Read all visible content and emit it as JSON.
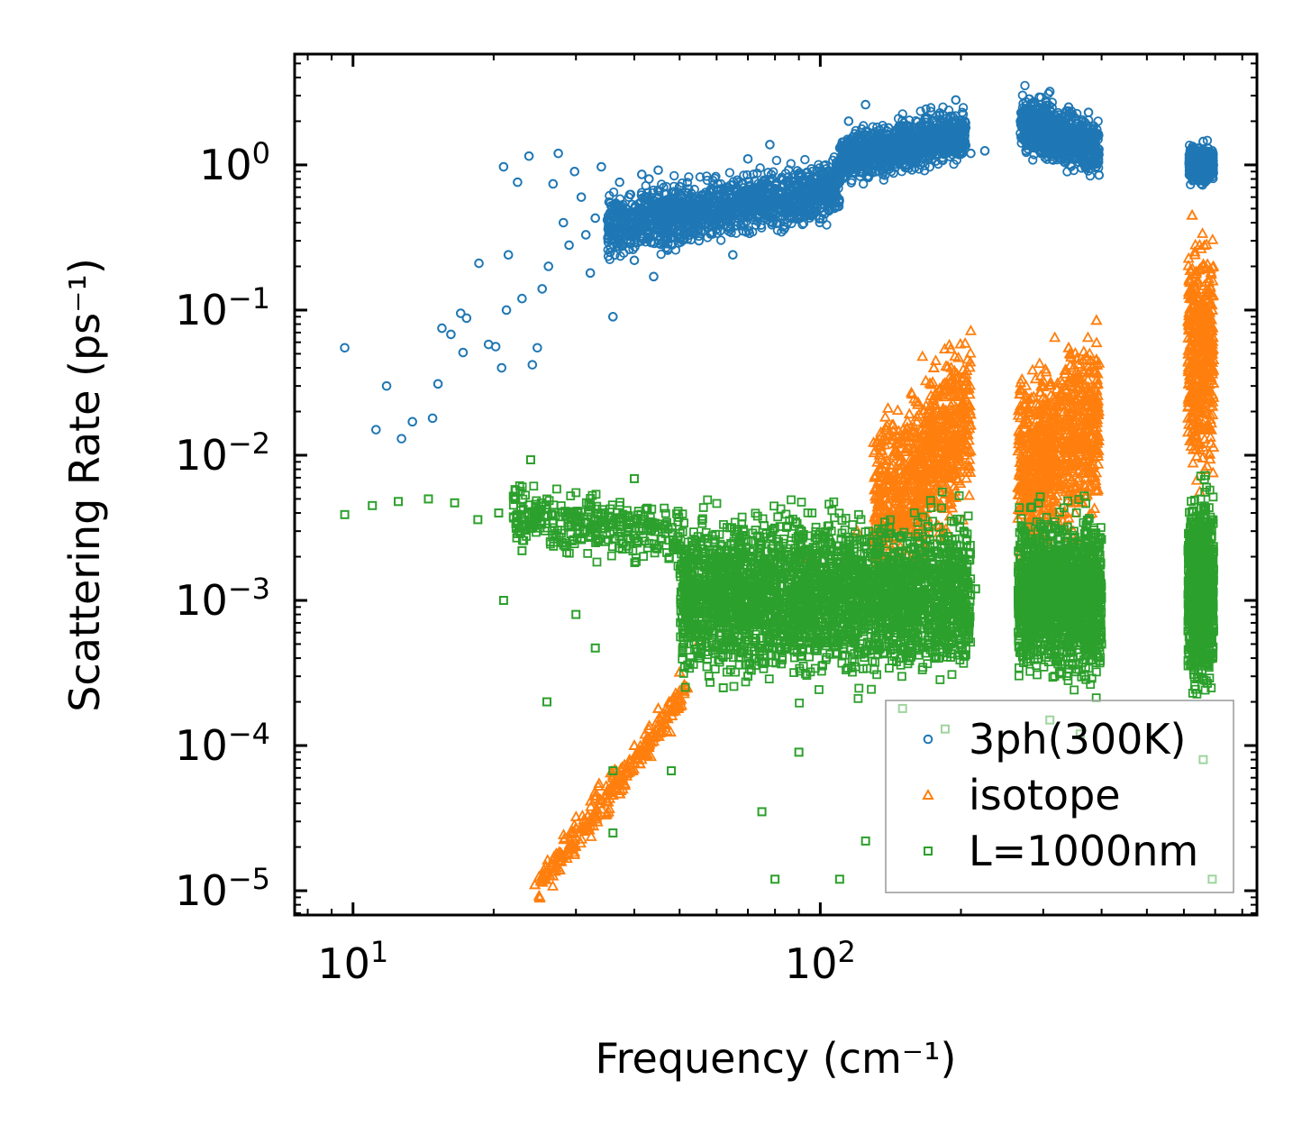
{
  "chart_data": {
    "type": "scatter",
    "xscale": "log",
    "yscale": "log",
    "xlabel": "Frequency (cm⁻¹)",
    "ylabel": "Scattering Rate (ps⁻¹)",
    "xlim": [
      7.5,
      860
    ],
    "ylim": [
      6.8e-06,
      5.8
    ],
    "x_tick_labels": [
      {
        "value": 10,
        "base": "10",
        "exp": "1"
      },
      {
        "value": 100,
        "base": "10",
        "exp": "2"
      }
    ],
    "y_tick_labels": [
      {
        "value": 1,
        "base": "10",
        "exp": "0"
      },
      {
        "value": 0.1,
        "base": "10",
        "exp": "−1"
      },
      {
        "value": 0.01,
        "base": "10",
        "exp": "−2"
      },
      {
        "value": 0.001,
        "base": "10",
        "exp": "−3"
      },
      {
        "value": 0.0001,
        "base": "10",
        "exp": "−4"
      },
      {
        "value": 1e-05,
        "base": "10",
        "exp": "−5"
      }
    ],
    "legend_position": "lower-right",
    "series": [
      {
        "name": "3ph(300K)",
        "marker": "circle",
        "color": "#1f77b4",
        "points": [
          [
            9.6,
            0.055
          ],
          [
            11.2,
            0.015
          ],
          [
            11.8,
            0.03
          ],
          [
            12.7,
            0.013
          ],
          [
            13.4,
            0.017
          ],
          [
            14.8,
            0.018
          ],
          [
            15.2,
            0.031
          ],
          [
            15.5,
            0.075
          ],
          [
            16.2,
            0.068
          ],
          [
            17.0,
            0.095
          ],
          [
            17.2,
            0.051
          ],
          [
            17.5,
            0.088
          ],
          [
            18.6,
            0.21
          ],
          [
            19.5,
            0.058
          ],
          [
            20.2,
            0.056
          ],
          [
            20.8,
            0.04
          ],
          [
            21.3,
            0.1
          ],
          [
            21.5,
            0.24
          ],
          [
            21.0,
            0.97
          ],
          [
            22.5,
            0.76
          ],
          [
            23.0,
            0.12
          ],
          [
            23.8,
            1.15
          ],
          [
            24.2,
            0.042
          ],
          [
            24.8,
            0.055
          ],
          [
            25.4,
            0.14
          ],
          [
            26.2,
            0.2
          ],
          [
            26.8,
            0.74
          ],
          [
            27.5,
            1.2
          ],
          [
            28.2,
            0.4
          ],
          [
            29.0,
            0.28
          ],
          [
            29.8,
            0.9
          ],
          [
            30.8,
            0.6
          ],
          [
            31.5,
            0.33
          ],
          [
            32.2,
            0.18
          ],
          [
            33.0,
            0.43
          ],
          [
            34.0,
            0.97
          ],
          [
            35.5,
            0.25
          ],
          [
            36.0,
            0.09
          ],
          [
            37.2,
            0.76
          ],
          [
            38.5,
            0.3
          ],
          [
            40.0,
            0.22
          ],
          [
            41.5,
            0.86
          ],
          [
            43.0,
            0.8
          ],
          [
            44.0,
            0.17
          ],
          [
            45.0,
            0.92
          ],
          [
            50.0,
            0.71
          ],
          [
            55.0,
            0.3
          ],
          [
            60.0,
            0.67
          ],
          [
            65.0,
            0.24
          ],
          [
            70.0,
            1.1
          ],
          [
            78.0,
            1.38
          ],
          [
            85.0,
            0.4
          ],
          [
            95.0,
            0.45
          ],
          [
            105.0,
            0.9
          ],
          [
            115.0,
            2.0
          ],
          [
            125.0,
            2.6
          ],
          [
            140.0,
            1.8
          ],
          [
            160.0,
            1.2
          ],
          [
            180.0,
            2.2
          ],
          [
            195.0,
            2.8
          ],
          [
            210.0,
            1.2
          ],
          [
            225.0,
            1.25
          ],
          [
            310.0,
            3.2
          ],
          [
            340.0,
            2.5
          ],
          [
            375.0,
            2.3
          ],
          [
            395.0,
            0.85
          ],
          [
            625.0,
            1.3
          ],
          [
            660.0,
            1.45
          ],
          [
            690.0,
            1.25
          ]
        ]
      },
      {
        "name": "isotope",
        "marker": "triangle",
        "color": "#ff7f0e",
        "points": [
          [
            24.5,
            1.1e-05
          ],
          [
            26.0,
            1.4e-05
          ],
          [
            27.5,
            1.8e-05
          ],
          [
            30.0,
            2.7e-05
          ],
          [
            33.0,
            4.5e-05
          ],
          [
            36.0,
            6.2e-05
          ],
          [
            40.0,
            0.0001
          ],
          [
            45.0,
            0.00018
          ],
          [
            50.0,
            0.00032
          ],
          [
            55.0,
            0.00052
          ],
          [
            62.0,
            0.0009
          ],
          [
            75.0,
            0.0012
          ],
          [
            95.0,
            0.002
          ],
          [
            120.0,
            0.003
          ],
          [
            145.0,
            0.012
          ],
          [
            175.0,
            0.04
          ],
          [
            200.0,
            0.018
          ],
          [
            265.0,
            0.006
          ],
          [
            300.0,
            0.025
          ],
          [
            340.0,
            0.055
          ],
          [
            390.0,
            0.085
          ],
          [
            625.0,
            0.45
          ],
          [
            660.0,
            0.2
          ],
          [
            690.0,
            0.1
          ]
        ]
      },
      {
        "name": "L=1000nm",
        "marker": "square",
        "color": "#2ca02c",
        "points": [
          [
            9.6,
            0.0039
          ],
          [
            11.0,
            0.0045
          ],
          [
            12.5,
            0.0048
          ],
          [
            14.5,
            0.005
          ],
          [
            16.5,
            0.0047
          ],
          [
            18.5,
            0.0036
          ],
          [
            20.5,
            0.004
          ],
          [
            21.0,
            0.001
          ],
          [
            23.0,
            0.0022
          ],
          [
            24.0,
            0.0093
          ],
          [
            26.0,
            0.0002
          ],
          [
            28.0,
            0.0025
          ],
          [
            30.0,
            0.0008
          ],
          [
            33.0,
            0.00047
          ],
          [
            36.0,
            2.5e-05
          ],
          [
            36.0,
            6.7e-05
          ],
          [
            40.0,
            0.0069
          ],
          [
            48.0,
            6.7e-05
          ],
          [
            55.0,
            0.0004
          ],
          [
            62.0,
            0.00025
          ],
          [
            70.0,
            0.0003
          ],
          [
            75.0,
            3.5e-05
          ],
          [
            80.0,
            1.2e-05
          ],
          [
            90.0,
            9e-05
          ],
          [
            110.0,
            1.2e-05
          ],
          [
            125.0,
            2.2e-05
          ],
          [
            150.0,
            0.00018
          ],
          [
            185.0,
            0.00013
          ],
          [
            215.0,
            0.0012
          ],
          [
            270.0,
            0.0009
          ],
          [
            310.0,
            0.00015
          ],
          [
            360.0,
            0.00012
          ],
          [
            400.0,
            0.0005
          ],
          [
            620.0,
            0.0015
          ],
          [
            660.0,
            8e-05
          ],
          [
            690.0,
            1.2e-05
          ]
        ]
      }
    ]
  }
}
